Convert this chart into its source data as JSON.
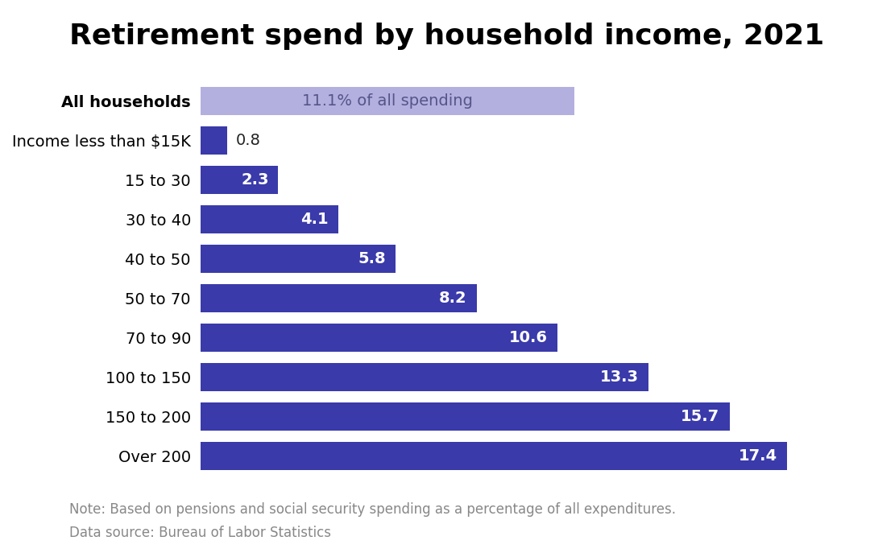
{
  "title": "Retirement spend by household income, 2021",
  "categories": [
    "All households",
    "Income less than $15K",
    "15 to 30",
    "30 to 40",
    "40 to 50",
    "50 to 70",
    "70 to 90",
    "100 to 150",
    "150 to 200",
    "Over 200"
  ],
  "values": [
    11.1,
    0.8,
    2.3,
    4.1,
    5.8,
    8.2,
    10.6,
    13.3,
    15.7,
    17.4
  ],
  "bar_colors": [
    "#b3b0e0",
    "#3a3aaa",
    "#3a3aaa",
    "#3a3aaa",
    "#3a3aaa",
    "#3a3aaa",
    "#3a3aaa",
    "#3a3aaa",
    "#3a3aaa",
    "#3a3aaa"
  ],
  "all_households_label": "11.1% of all spending",
  "note_line1": "Note: Based on pensions and social security spending as a percentage of all expenditures.",
  "note_line2": "Data source: Bureau of Labor Statistics",
  "title_fontsize": 26,
  "label_fontsize": 14,
  "category_fontsize": 14,
  "note_fontsize": 12,
  "background_color": "#ffffff",
  "xlim": [
    0,
    19.5
  ]
}
